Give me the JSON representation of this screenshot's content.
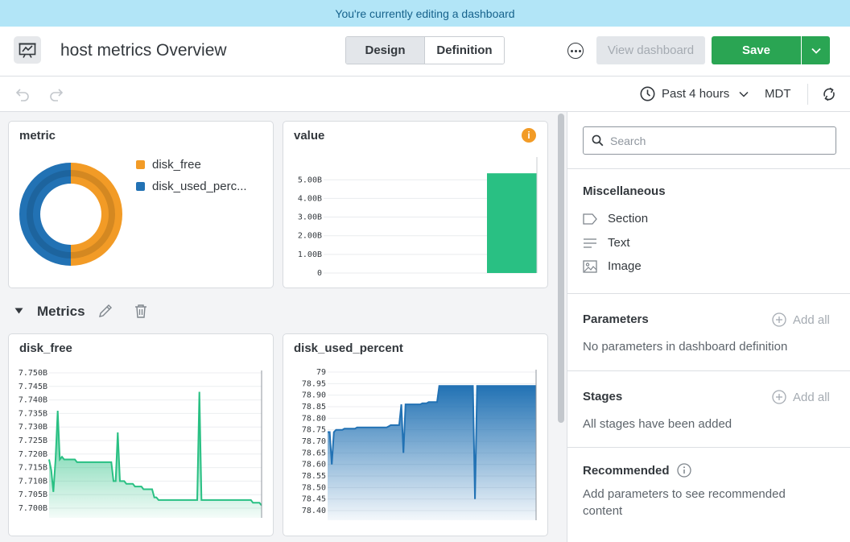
{
  "banner": {
    "text": "You're currently editing a dashboard"
  },
  "header": {
    "app_icon": "dashboard-icon",
    "title": "host metrics Overview",
    "tabs": [
      {
        "label": "Design",
        "active": true
      },
      {
        "label": "Definition",
        "active": false
      }
    ],
    "more_icon": "more-options-icon",
    "view_dashboard_label": "View dashboard",
    "save_label": "Save",
    "accent_color": "#2aa553"
  },
  "toolbar": {
    "undo_icon": "undo-icon",
    "redo_icon": "redo-icon",
    "time_range": "Past 4 hours",
    "timezone": "MDT"
  },
  "section": {
    "title": "Metrics"
  },
  "chart_data": [
    {
      "type": "pie",
      "title": "metric",
      "categories": [
        "disk_free",
        "disk_used_perc..."
      ],
      "values": [
        50,
        50
      ],
      "colors": [
        "#f29b26",
        "#2272b4"
      ]
    },
    {
      "type": "bar",
      "title": "value",
      "yticks": [
        "5.00B",
        "4.00B",
        "3.00B",
        "2.00B",
        "1.00B",
        "0"
      ],
      "ylim": [
        0,
        5.4
      ],
      "values": [
        5.35
      ],
      "color": "#29c083"
    },
    {
      "type": "area",
      "title": "disk_free",
      "yticks": [
        "7.750B",
        "7.745B",
        "7.740B",
        "7.735B",
        "7.730B",
        "7.725B",
        "7.720B",
        "7.715B",
        "7.710B",
        "7.705B",
        "7.700B"
      ],
      "ylim": [
        7.7,
        7.75
      ],
      "color": "#29c083",
      "values": [
        7.718,
        7.714,
        7.706,
        7.718,
        7.736,
        7.718,
        7.719,
        7.718,
        7.718,
        7.718,
        7.718,
        7.718,
        7.718,
        7.717,
        7.717,
        7.717,
        7.717,
        7.717,
        7.717,
        7.717,
        7.717,
        7.717,
        7.717,
        7.717,
        7.717,
        7.717,
        7.717,
        7.717,
        7.717,
        7.717,
        7.71,
        7.71,
        7.728,
        7.71,
        7.71,
        7.71,
        7.709,
        7.709,
        7.709,
        7.709,
        7.708,
        7.708,
        7.708,
        7.708,
        7.707,
        7.707,
        7.707,
        7.707,
        7.707,
        7.704,
        7.704,
        7.703,
        7.703,
        7.703,
        7.703,
        7.703,
        7.703,
        7.703,
        7.703,
        7.703,
        7.703,
        7.703,
        7.703,
        7.703,
        7.703,
        7.703,
        7.703,
        7.703,
        7.703,
        7.703,
        7.743,
        7.703,
        7.703,
        7.703,
        7.703,
        7.703,
        7.703,
        7.703,
        7.703,
        7.703,
        7.703,
        7.703,
        7.703,
        7.703,
        7.703,
        7.703,
        7.703,
        7.703,
        7.703,
        7.703,
        7.703,
        7.703,
        7.703,
        7.703,
        7.703,
        7.702,
        7.702,
        7.702,
        7.702,
        7.701
      ]
    },
    {
      "type": "area",
      "title": "disk_used_percent",
      "yticks": [
        "79",
        "78.95",
        "78.90",
        "78.85",
        "78.80",
        "78.75",
        "78.70",
        "78.65",
        "78.60",
        "78.55",
        "78.50",
        "78.45",
        "78.40"
      ],
      "ylim": [
        78.4,
        79
      ],
      "color": "#2272b4",
      "values": [
        78.74,
        78.74,
        78.6,
        78.74,
        78.75,
        78.75,
        78.75,
        78.75,
        78.755,
        78.755,
        78.755,
        78.755,
        78.755,
        78.755,
        78.76,
        78.76,
        78.76,
        78.76,
        78.76,
        78.76,
        78.76,
        78.76,
        78.76,
        78.76,
        78.76,
        78.76,
        78.76,
        78.76,
        78.76,
        78.765,
        78.77,
        78.77,
        78.77,
        78.77,
        78.77,
        78.86,
        78.65,
        78.86,
        78.86,
        78.86,
        78.86,
        78.86,
        78.86,
        78.86,
        78.86,
        78.865,
        78.865,
        78.865,
        78.87,
        78.87,
        78.87,
        78.87,
        78.87,
        78.94,
        78.94,
        78.94,
        78.94,
        78.94,
        78.94,
        78.94,
        78.94,
        78.94,
        78.94,
        78.94,
        78.94,
        78.94,
        78.94,
        78.94,
        78.94,
        78.94,
        78.45,
        78.94,
        78.94,
        78.94,
        78.94,
        78.94,
        78.94,
        78.94,
        78.94,
        78.94,
        78.94,
        78.94,
        78.94,
        78.94,
        78.94,
        78.94,
        78.94,
        78.94,
        78.94,
        78.94,
        78.94,
        78.94,
        78.94,
        78.94,
        78.94,
        78.94,
        78.94,
        78.94,
        78.94,
        78.94
      ]
    }
  ],
  "panel": {
    "search_placeholder": "Search",
    "misc_title": "Miscellaneous",
    "misc_items": [
      {
        "label": "Section",
        "icon": "section-tag-icon"
      },
      {
        "label": "Text",
        "icon": "text-lines-icon"
      },
      {
        "label": "Image",
        "icon": "image-icon"
      }
    ],
    "parameters_title": "Parameters",
    "parameters_add_all": "Add all",
    "parameters_empty": "No parameters in dashboard definition",
    "stages_title": "Stages",
    "stages_add_all": "Add all",
    "stages_empty": "All stages have been added",
    "recommended_title": "Recommended",
    "recommended_hint": "Add parameters to see recommended content"
  }
}
